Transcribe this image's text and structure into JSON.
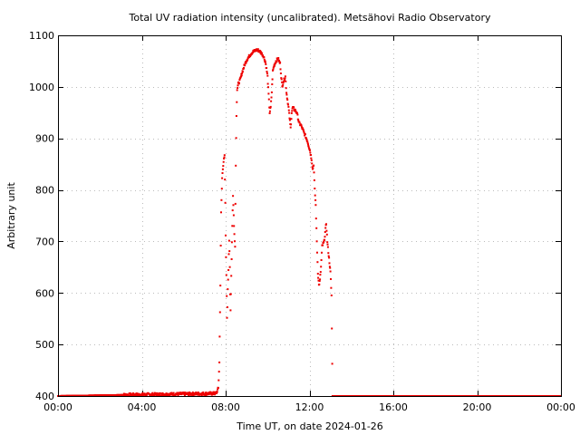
{
  "chart_data": {
    "type": "scatter",
    "title": "Total UV radiation intensity (uncalibrated). Metsähovi Radio Observatory",
    "xlabel": "Time UT, on date 2024-01-26",
    "ylabel": "Arbitrary unit",
    "xlim_hours": [
      0,
      24
    ],
    "ylim": [
      400,
      1100
    ],
    "x_ticks": [
      {
        "hour": 0,
        "label": "00:00"
      },
      {
        "hour": 4,
        "label": "04:00"
      },
      {
        "hour": 8,
        "label": "08:00"
      },
      {
        "hour": 12,
        "label": "12:00"
      },
      {
        "hour": 16,
        "label": "16:00"
      },
      {
        "hour": 20,
        "label": "20:00"
      },
      {
        "hour": 24,
        "label": "00:00"
      }
    ],
    "y_ticks": [
      400,
      500,
      600,
      700,
      800,
      900,
      1000,
      1100
    ],
    "grid": true,
    "point_color": "#ee0000",
    "series": [
      {
        "points": [
          [
            0.0,
            400
          ],
          [
            7.55,
            405
          ],
          [
            7.65,
            415
          ],
          [
            7.7,
            465
          ],
          [
            7.75,
            615
          ],
          [
            7.78,
            750
          ],
          [
            7.8,
            780
          ],
          [
            7.83,
            820
          ],
          [
            7.86,
            840
          ],
          [
            7.9,
            855
          ],
          [
            7.95,
            865
          ],
          [
            7.98,
            785
          ],
          [
            8.0,
            712
          ],
          [
            8.03,
            640
          ],
          [
            8.05,
            595
          ],
          [
            8.07,
            545
          ],
          [
            8.1,
            610
          ],
          [
            8.13,
            640
          ],
          [
            8.17,
            705
          ],
          [
            8.2,
            650
          ],
          [
            8.23,
            560
          ],
          [
            8.27,
            640
          ],
          [
            8.3,
            700
          ],
          [
            8.35,
            790
          ],
          [
            8.4,
            730
          ],
          [
            8.45,
            690
          ],
          [
            8.48,
            840
          ],
          [
            8.5,
            900
          ],
          [
            8.52,
            955
          ],
          [
            8.55,
            995
          ],
          [
            8.6,
            1005
          ],
          [
            8.7,
            1015
          ],
          [
            8.8,
            1030
          ],
          [
            8.9,
            1042
          ],
          [
            9.0,
            1052
          ],
          [
            9.1,
            1058
          ],
          [
            9.2,
            1064
          ],
          [
            9.3,
            1068
          ],
          [
            9.4,
            1070
          ],
          [
            9.5,
            1072
          ],
          [
            9.6,
            1070
          ],
          [
            9.7,
            1066
          ],
          [
            9.8,
            1060
          ],
          [
            9.9,
            1048
          ],
          [
            9.95,
            1035
          ],
          [
            10.0,
            1020
          ],
          [
            10.05,
            985
          ],
          [
            10.1,
            950
          ],
          [
            10.15,
            960
          ],
          [
            10.2,
            990
          ],
          [
            10.25,
            1030
          ],
          [
            10.3,
            1040
          ],
          [
            10.4,
            1050
          ],
          [
            10.5,
            1055
          ],
          [
            10.6,
            1045
          ],
          [
            10.65,
            1020
          ],
          [
            10.7,
            1000
          ],
          [
            10.75,
            1010
          ],
          [
            10.8,
            1015
          ],
          [
            10.85,
            1020
          ],
          [
            10.9,
            990
          ],
          [
            11.0,
            960
          ],
          [
            11.05,
            940
          ],
          [
            11.1,
            920
          ],
          [
            11.15,
            950
          ],
          [
            11.2,
            960
          ],
          [
            11.3,
            955
          ],
          [
            11.4,
            950
          ],
          [
            11.5,
            930
          ],
          [
            11.6,
            925
          ],
          [
            11.7,
            915
          ],
          [
            11.8,
            905
          ],
          [
            11.9,
            895
          ],
          [
            12.0,
            880
          ],
          [
            12.1,
            860
          ],
          [
            12.15,
            840
          ],
          [
            12.2,
            850
          ],
          [
            12.25,
            800
          ],
          [
            12.3,
            770
          ],
          [
            12.35,
            700
          ],
          [
            12.4,
            640
          ],
          [
            12.45,
            615
          ],
          [
            12.5,
            625
          ],
          [
            12.55,
            650
          ],
          [
            12.6,
            690
          ],
          [
            12.7,
            700
          ],
          [
            12.8,
            735
          ],
          [
            12.85,
            700
          ],
          [
            12.9,
            680
          ],
          [
            13.0,
            640
          ],
          [
            13.05,
            595
          ],
          [
            13.1,
            400
          ],
          [
            24.0,
            400
          ]
        ]
      }
    ]
  }
}
